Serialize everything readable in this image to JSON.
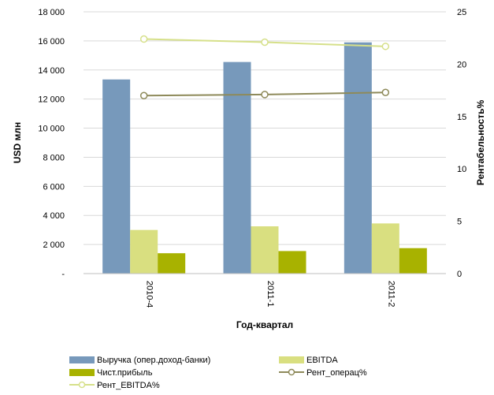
{
  "chart_data": {
    "type": "bar",
    "categories": [
      "2010-4",
      "2011-1",
      "2011-2"
    ],
    "xlabel": "Год-квартал",
    "ylabel": "USD млн",
    "y2label": "Рентабельность%",
    "ylim": [
      0,
      18000
    ],
    "y2lim": [
      0,
      25
    ],
    "y_ticks": [
      "-",
      "2 000",
      "4 000",
      "6 000",
      "8 000",
      "10 000",
      "12 000",
      "14 000",
      "16 000",
      "18 000"
    ],
    "y2_ticks": [
      "0",
      "5",
      "10",
      "15",
      "20",
      "25"
    ],
    "grid": true,
    "legend_position": "bottom",
    "bar_series": [
      {
        "name": "Выручка (опер.доход-банки)",
        "color": "#7799bb",
        "values": [
          13350,
          14550,
          15900
        ]
      },
      {
        "name": "EBITDA",
        "color": "#d9df80",
        "values": [
          3000,
          3250,
          3450
        ]
      },
      {
        "name": "Чист.прибыль",
        "color": "#a8b200",
        "values": [
          1400,
          1550,
          1750
        ]
      }
    ],
    "line_series": [
      {
        "name": "Рент_операц%",
        "color": "#8e8a5a",
        "axis": "right",
        "values": [
          17.0,
          17.1,
          17.3
        ]
      },
      {
        "name": "Рент_EBITDA%",
        "color": "#d6e08a",
        "axis": "right",
        "values": [
          22.4,
          22.1,
          21.7
        ]
      }
    ]
  }
}
